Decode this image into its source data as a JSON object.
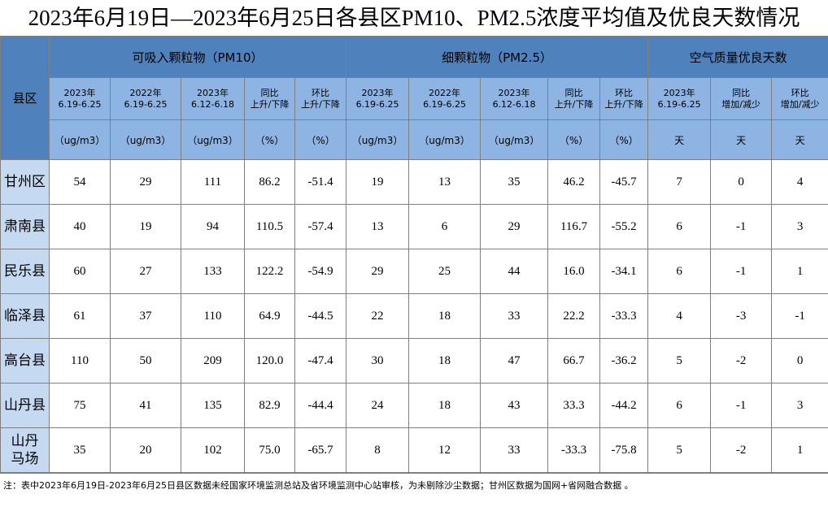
{
  "title": "2023年6月19日—2023年6月25日各县区PM10、PM2.5浓度平均值及优良天数情况",
  "table": {
    "corner": "县区",
    "groups": [
      "可吸入颗粒物（PM10）",
      "细颗粒物（PM2.5）",
      "空气质量优良天数"
    ],
    "subheaders": [
      [
        "2023年",
        "6.19-6.25"
      ],
      [
        "2022年",
        "6.19-6.25"
      ],
      [
        "2023年",
        "6.12-6.18"
      ],
      [
        "同比",
        "上升/下降"
      ],
      [
        "环比",
        "上升/下降"
      ],
      [
        "2023年",
        "6.19-6.25"
      ],
      [
        "2022年",
        "6.19-6.25"
      ],
      [
        "2023年",
        "6.12-6.18"
      ],
      [
        "同比",
        "上升/下降"
      ],
      [
        "环比",
        "上升/下降"
      ],
      [
        "2023年",
        "6.19-6.25"
      ],
      [
        "同比",
        "增加/减少"
      ],
      [
        "环比",
        "增加/减少"
      ]
    ],
    "units": [
      "（ug/m3）",
      "（ug/m3）",
      "（ug/m3）",
      "（%）",
      "（%）",
      "（ug/m3）",
      "（ug/m3）",
      "（ug/m3）",
      "（%）",
      "（%）",
      "天",
      "天",
      "天"
    ],
    "districts": [
      [
        "甘州区"
      ],
      [
        "肃南县"
      ],
      [
        "民乐县"
      ],
      [
        "临泽县"
      ],
      [
        "高台县"
      ],
      [
        "山丹县"
      ],
      [
        "山丹",
        "马场"
      ]
    ],
    "rows": [
      [
        "54",
        "29",
        "111",
        "86.2",
        "-51.4",
        "19",
        "13",
        "35",
        "46.2",
        "-45.7",
        "7",
        "0",
        "4"
      ],
      [
        "40",
        "19",
        "94",
        "110.5",
        "-57.4",
        "13",
        "6",
        "29",
        "116.7",
        "-55.2",
        "6",
        "-1",
        "3"
      ],
      [
        "60",
        "27",
        "133",
        "122.2",
        "-54.9",
        "29",
        "25",
        "44",
        "16.0",
        "-34.1",
        "6",
        "-1",
        "1"
      ],
      [
        "61",
        "37",
        "110",
        "64.9",
        "-44.5",
        "22",
        "18",
        "33",
        "22.2",
        "-33.3",
        "4",
        "-3",
        "-1"
      ],
      [
        "110",
        "50",
        "209",
        "120.0",
        "-47.4",
        "30",
        "18",
        "47",
        "66.7",
        "-36.2",
        "5",
        "-2",
        "0"
      ],
      [
        "75",
        "41",
        "135",
        "82.9",
        "-44.4",
        "24",
        "18",
        "43",
        "33.3",
        "-44.2",
        "6",
        "-1",
        "3"
      ],
      [
        "35",
        "20",
        "102",
        "75.0",
        "-65.7",
        "8",
        "12",
        "33",
        "-33.3",
        "-75.8",
        "5",
        "-2",
        "1"
      ]
    ]
  },
  "note": "注：表中2023年6月19日-2023年6月25日县区数据未经国家环境监测总站及省环境监测中心站审核，为未剔除沙尘数据；甘州区数据为国网+省网融合数据 。"
}
